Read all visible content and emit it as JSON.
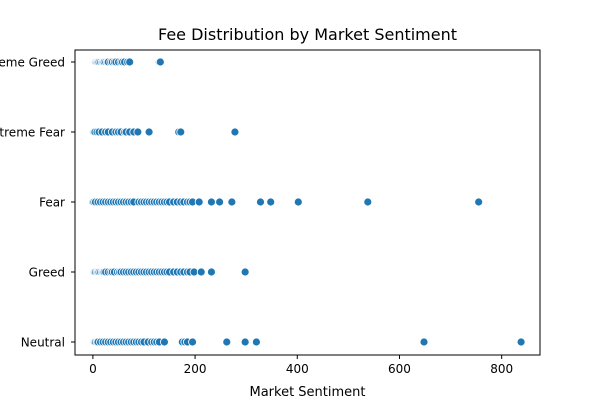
{
  "chart_data": {
    "type": "scatter",
    "title": "Fee Distribution by Market Sentiment",
    "xlabel": "Market Sentiment",
    "ylabel": "",
    "xlim": [
      -35,
      875
    ],
    "xticks": [
      0,
      200,
      400,
      600,
      800
    ],
    "categories": [
      "Extreme Greed",
      "Extreme Fear",
      "Fear",
      "Greed",
      "Neutral"
    ],
    "grid": false,
    "legend": "none",
    "marker_color": "#1f77b4",
    "series": [
      {
        "category": "Extreme Greed",
        "x": [
          0,
          1,
          2,
          3,
          4,
          5,
          6,
          8,
          10,
          12,
          15,
          18,
          20,
          22,
          25,
          28,
          30,
          35,
          38,
          42,
          45,
          50,
          55,
          58,
          62,
          68,
          72,
          130,
          132
        ]
      },
      {
        "category": "Extreme Fear",
        "x": [
          0,
          1,
          2,
          4,
          8,
          12,
          18,
          25,
          30,
          38,
          45,
          50,
          55,
          62,
          65,
          72,
          80,
          88,
          110,
          168,
          172,
          278
        ]
      },
      {
        "category": "Fear",
        "x": [
          0,
          2,
          5,
          10,
          15,
          20,
          25,
          30,
          35,
          40,
          45,
          50,
          55,
          60,
          65,
          70,
          75,
          80,
          90,
          95,
          100,
          105,
          110,
          115,
          120,
          125,
          130,
          135,
          140,
          145,
          150,
          158,
          165,
          172,
          178,
          185,
          190,
          195,
          208,
          232,
          248,
          272,
          328,
          348,
          402,
          538,
          755
        ]
      },
      {
        "category": "Greed",
        "x": [
          0,
          1,
          2,
          3,
          5,
          8,
          10,
          12,
          15,
          18,
          20,
          22,
          25,
          30,
          35,
          38,
          42,
          48,
          52,
          55,
          60,
          65,
          70,
          75,
          80,
          85,
          90,
          95,
          100,
          105,
          110,
          115,
          120,
          125,
          130,
          135,
          140,
          145,
          150,
          158,
          165,
          172,
          178,
          185,
          190,
          198,
          212,
          232,
          298
        ]
      },
      {
        "category": "Neutral",
        "x": [
          0,
          1,
          2,
          3,
          5,
          8,
          10,
          15,
          20,
          25,
          30,
          35,
          40,
          45,
          50,
          55,
          60,
          65,
          70,
          75,
          80,
          85,
          90,
          95,
          100,
          108,
          115,
          120,
          125,
          130,
          140,
          175,
          180,
          185,
          195,
          262,
          298,
          320,
          648,
          838
        ]
      }
    ]
  }
}
